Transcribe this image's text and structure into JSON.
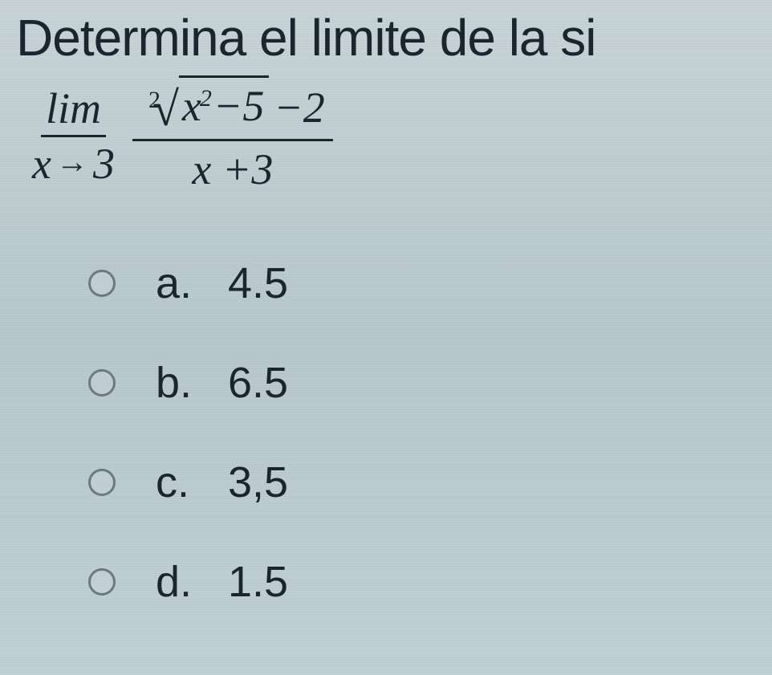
{
  "question": {
    "title": "Determina el limite de la si",
    "limit_label": "lim",
    "limit_var": "x",
    "limit_arrow": "→",
    "limit_to": "3",
    "root_index": "2",
    "radicand_var": "x",
    "radicand_exp": "2",
    "radicand_minus": "−5",
    "numerator_tail": "−2",
    "denominator_var": "x",
    "denominator_tail": "+3"
  },
  "options": [
    {
      "letter": "a.",
      "value": "4.5"
    },
    {
      "letter": "b.",
      "value": "6.5"
    },
    {
      "letter": "c.",
      "value": "3,5"
    },
    {
      "letter": "d.",
      "value": "1.5"
    }
  ],
  "colors": {
    "text": "#1a2530",
    "radio_border": "#6a7a82",
    "background_top": "#c8d4d8",
    "background_bottom": "#c0d0d4"
  },
  "typography": {
    "title_fontsize": 64,
    "equation_fontsize": 54,
    "option_fontsize": 54,
    "title_family": "Arial",
    "equation_family": "Times New Roman"
  }
}
